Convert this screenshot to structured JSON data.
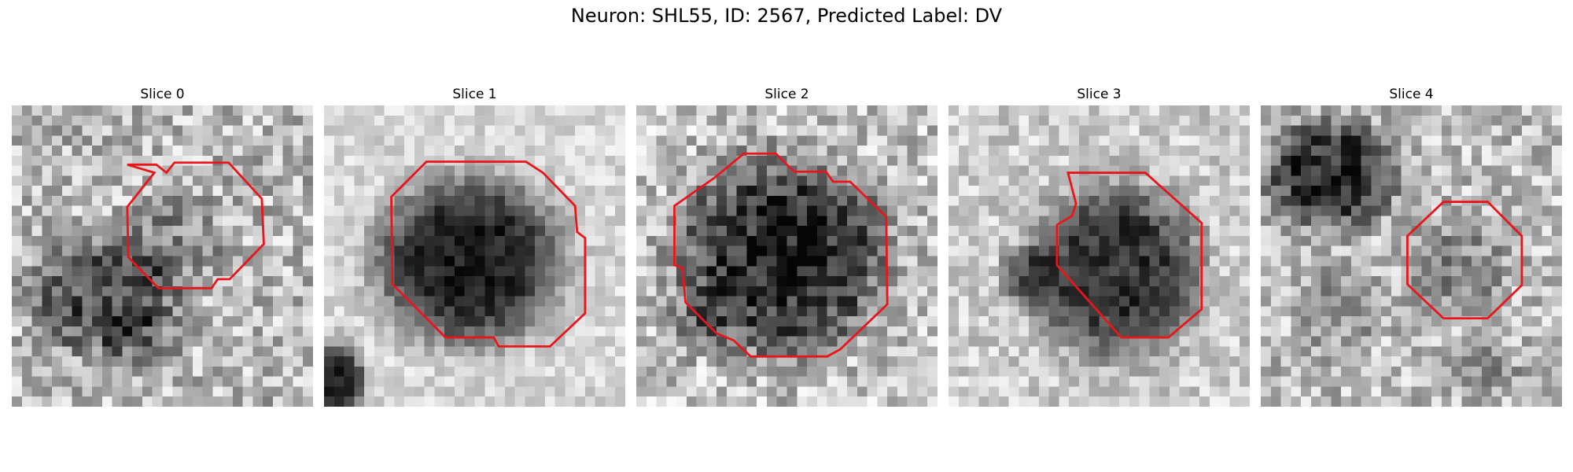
{
  "figure": {
    "title": "Neuron: SHL55, ID: 2567, Predicted Label: DV"
  },
  "contour_color": "#e8161b",
  "panels": [
    {
      "title": "Slice 0"
    },
    {
      "title": "Slice 1"
    },
    {
      "title": "Slice 2"
    },
    {
      "title": "Slice 3"
    },
    {
      "title": "Slice 4"
    }
  ]
}
